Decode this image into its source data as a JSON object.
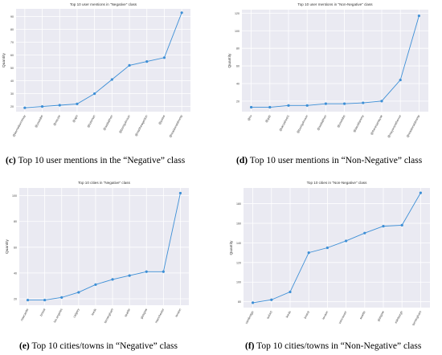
{
  "chart_data": [
    {
      "type": "line",
      "title": "Top 10 user mentions in \"Negative\" class",
      "ylabel": "Quantity",
      "categories": [
        "@bernieburntmay",
        "@youtube",
        "@mizzle",
        "@ajm",
        "@tutsman",
        "@sadiqkhan",
        "@borisjohnson",
        "@matthewgeldon",
        "@potus",
        "@realdonaldtrump"
      ],
      "values": [
        19,
        20,
        21,
        22,
        30,
        41,
        52,
        55,
        58,
        93
      ],
      "yticks": [
        20,
        30,
        40,
        50,
        60,
        70,
        80,
        90
      ],
      "ylim": [
        16,
        96
      ],
      "color": "#3d8fd6",
      "caption_label": "(c)",
      "caption_text": "Top 10 user mentions in the “Negative” class"
    },
    {
      "type": "line",
      "title": "Top 10 user mentions in \"Non-Negative\" class",
      "ylabel": "Quantity",
      "categories": [
        "@itv",
        "@gap",
        "@ukrasheel1",
        "@borisjohnson",
        "@sadiqkhan",
        "@youtube",
        "@davidlammy",
        "@theresamayuk",
        "@mayorsmithence",
        "@realdonaldtrump"
      ],
      "values": [
        13,
        13,
        15,
        15,
        17,
        17,
        18,
        20,
        44,
        117
      ],
      "yticks": [
        20,
        40,
        60,
        80,
        100,
        120
      ],
      "ylim": [
        8,
        124
      ],
      "color": "#3d8fd6",
      "caption_label": "(d)",
      "caption_text": "Top 10 user mentions in “Non-Negative” class"
    },
    {
      "type": "line",
      "title": "Top 10 cities in \"Negative\" class",
      "ylabel": "Quantity",
      "categories": [
        "newcastle",
        "bristol",
        "los angeles",
        "calgary",
        "leeds",
        "birmingham",
        "seattle",
        "glasgow",
        "manchester",
        "london"
      ],
      "values": [
        19,
        19,
        21,
        25,
        31,
        35,
        38,
        41,
        41,
        102
      ],
      "yticks": [
        20,
        40,
        60,
        80,
        100
      ],
      "ylim": [
        15,
        106
      ],
      "color": "#3d8fd6",
      "caption_label": "(e)",
      "caption_text": "Top 10 cities/towns in “Negative” class"
    },
    {
      "type": "line",
      "title": "Top 10 cities in \"Non-Negative\" class",
      "ylabel": "Quantity",
      "categories": [
        "cambridge",
        "oxford",
        "leeds",
        "bristol",
        "london",
        "vancouver",
        "seattle",
        "glasgow",
        "edinburgh",
        "birmingham"
      ],
      "values": [
        79,
        82,
        90,
        130,
        135,
        142,
        150,
        157,
        158,
        191
      ],
      "yticks": [
        80,
        100,
        120,
        140,
        160,
        180
      ],
      "ylim": [
        74,
        196
      ],
      "color": "#3d8fd6",
      "caption_label": "(f)",
      "caption_text": "Top 10 cities/towns in “Non-Negative” class"
    }
  ]
}
